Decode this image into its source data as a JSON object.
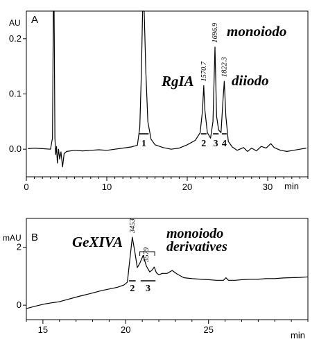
{
  "chart_data": [
    {
      "type": "line",
      "panel_label": "A",
      "ylabel": "AU",
      "xlabel": "min",
      "xlim": [
        0,
        35
      ],
      "ylim": [
        -0.05,
        0.25
      ],
      "x_ticks": [
        0,
        10,
        20,
        30
      ],
      "y_ticks": [
        0.0,
        0.1,
        0.2
      ],
      "y_tick_labels": [
        "0.0",
        "0.1",
        "0.2"
      ],
      "trace": [
        [
          0.2,
          0.001
        ],
        [
          1.0,
          0.002
        ],
        [
          2.0,
          0.001
        ],
        [
          3.0,
          0.0
        ],
        [
          3.25,
          0.02
        ],
        [
          3.35,
          0.25
        ],
        [
          3.45,
          0.25
        ],
        [
          3.55,
          0.02
        ],
        [
          3.65,
          -0.01
        ],
        [
          3.75,
          0.005
        ],
        [
          3.85,
          -0.025
        ],
        [
          4.0,
          0.0
        ],
        [
          4.15,
          -0.018
        ],
        [
          4.3,
          -0.005
        ],
        [
          4.5,
          -0.032
        ],
        [
          4.7,
          -0.008
        ],
        [
          5.0,
          -0.004
        ],
        [
          6.0,
          -0.002
        ],
        [
          7.0,
          -0.003
        ],
        [
          8.0,
          -0.002
        ],
        [
          9.0,
          -0.001
        ],
        [
          10.0,
          -0.002
        ],
        [
          11.0,
          0.0
        ],
        [
          12.0,
          0.002
        ],
        [
          13.0,
          0.004
        ],
        [
          13.8,
          0.007
        ],
        [
          14.1,
          0.04
        ],
        [
          14.3,
          0.14
        ],
        [
          14.45,
          0.25
        ],
        [
          14.65,
          0.25
        ],
        [
          14.85,
          0.14
        ],
        [
          15.1,
          0.05
        ],
        [
          15.5,
          0.018
        ],
        [
          16.0,
          0.008
        ],
        [
          17.0,
          0.003
        ],
        [
          18.0,
          0.0
        ],
        [
          19.0,
          0.002
        ],
        [
          20.0,
          0.008
        ],
        [
          21.0,
          0.016
        ],
        [
          21.6,
          0.03
        ],
        [
          21.9,
          0.07
        ],
        [
          22.05,
          0.115
        ],
        [
          22.2,
          0.07
        ],
        [
          22.5,
          0.03
        ],
        [
          22.9,
          0.02
        ],
        [
          23.2,
          0.05
        ],
        [
          23.45,
          0.185
        ],
        [
          23.65,
          0.06
        ],
        [
          23.9,
          0.035
        ],
        [
          24.2,
          0.03
        ],
        [
          24.45,
          0.09
        ],
        [
          24.6,
          0.123
        ],
        [
          24.8,
          0.06
        ],
        [
          25.1,
          0.014
        ],
        [
          25.6,
          0.004
        ],
        [
          26.2,
          -0.002
        ],
        [
          27.0,
          0.003
        ],
        [
          27.5,
          -0.004
        ],
        [
          28.0,
          0.002
        ],
        [
          28.6,
          -0.003
        ],
        [
          29.2,
          0.005
        ],
        [
          29.8,
          0.002
        ],
        [
          30.4,
          0.01
        ],
        [
          30.8,
          0.003
        ],
        [
          31.6,
          -0.002
        ],
        [
          32.4,
          -0.004
        ],
        [
          33.2,
          -0.002
        ],
        [
          34.0,
          0.0
        ],
        [
          34.8,
          0.002
        ]
      ],
      "peak_mass_labels": [
        {
          "x": 22.05,
          "text": "1570.7"
        },
        {
          "x": 23.45,
          "text": "1696.9"
        },
        {
          "x": 24.6,
          "text": "1822.3"
        }
      ],
      "annotations": [
        "RgIA",
        "monoiodo",
        "diiodo"
      ],
      "fractions": [
        {
          "label": "1",
          "x_start": 14.0,
          "x_end": 15.2
        },
        {
          "label": "2",
          "x_start": 21.7,
          "x_end": 22.4
        },
        {
          "label": "3",
          "x_start": 23.2,
          "x_end": 23.9
        },
        {
          "label": "4",
          "x_start": 24.3,
          "x_end": 24.9
        }
      ]
    },
    {
      "type": "line",
      "panel_label": "B",
      "ylabel": "mAU",
      "xlabel": "min",
      "xlim": [
        14,
        31
      ],
      "ylim": [
        -0.5,
        3.0
      ],
      "x_ticks": [
        15,
        20,
        25
      ],
      "y_ticks": [
        0,
        2
      ],
      "y_tick_labels": [
        "0",
        "2"
      ],
      "trace": [
        [
          14.0,
          -0.12
        ],
        [
          14.5,
          -0.04
        ],
        [
          15.0,
          0.03
        ],
        [
          15.5,
          0.08
        ],
        [
          16.0,
          0.12
        ],
        [
          16.5,
          0.2
        ],
        [
          17.0,
          0.28
        ],
        [
          17.5,
          0.35
        ],
        [
          18.0,
          0.42
        ],
        [
          18.5,
          0.5
        ],
        [
          19.0,
          0.56
        ],
        [
          19.5,
          0.62
        ],
        [
          19.9,
          0.7
        ],
        [
          20.1,
          0.8
        ],
        [
          20.25,
          1.6
        ],
        [
          20.4,
          2.35
        ],
        [
          20.55,
          1.85
        ],
        [
          20.7,
          1.3
        ],
        [
          20.85,
          1.45
        ],
        [
          21.05,
          1.72
        ],
        [
          21.25,
          1.35
        ],
        [
          21.45,
          1.15
        ],
        [
          21.6,
          1.22
        ],
        [
          21.72,
          1.32
        ],
        [
          21.85,
          1.12
        ],
        [
          22.0,
          1.05
        ],
        [
          22.2,
          1.1
        ],
        [
          22.5,
          1.1
        ],
        [
          22.8,
          1.2
        ],
        [
          23.1,
          1.08
        ],
        [
          23.5,
          0.95
        ],
        [
          24.0,
          0.92
        ],
        [
          24.5,
          0.9
        ],
        [
          25.0,
          0.88
        ],
        [
          25.5,
          0.86
        ],
        [
          25.9,
          0.86
        ],
        [
          26.05,
          0.95
        ],
        [
          26.2,
          0.86
        ],
        [
          26.6,
          0.86
        ],
        [
          27.0,
          0.88
        ],
        [
          27.5,
          0.9
        ],
        [
          28.0,
          0.9
        ],
        [
          28.5,
          0.92
        ],
        [
          29.0,
          0.92
        ],
        [
          29.5,
          0.94
        ],
        [
          30.0,
          0.95
        ],
        [
          30.5,
          0.96
        ],
        [
          31.0,
          0.98
        ]
      ],
      "peak_mass_labels": [
        {
          "x": 20.4,
          "text": "3453"
        },
        {
          "x": 21.25,
          "text": "3579"
        }
      ],
      "annotations": [
        "GeXIVA",
        "monoiodo",
        "derivatives"
      ],
      "bracket": {
        "x_start": 20.85,
        "x_end": 21.75
      },
      "fractions": [
        {
          "label": "2",
          "x_start": 20.2,
          "x_end": 20.6
        },
        {
          "label": "3",
          "x_start": 20.9,
          "x_end": 21.8
        }
      ]
    }
  ]
}
